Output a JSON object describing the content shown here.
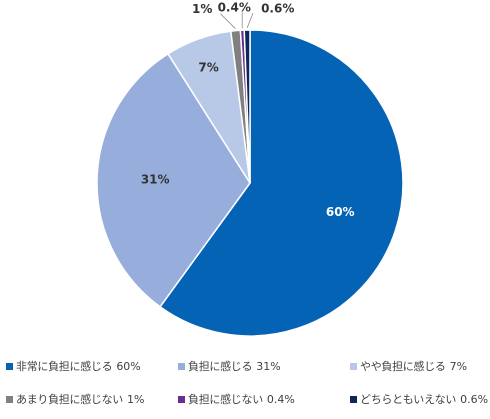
{
  "chart_data": {
    "type": "pie",
    "start_angle_deg": 0,
    "direction": "clockwise",
    "series": [
      {
        "label": "非常に負担に感じる",
        "value": 60,
        "display": "60%",
        "color": "#0563B5",
        "label_color": "#ffffff"
      },
      {
        "label": "負担に感じる",
        "value": 31,
        "display": "31%",
        "color": "#97AEDC",
        "label_color": "#333333"
      },
      {
        "label": "やや負担に感じる",
        "value": 7,
        "display": "7%",
        "color": "#B8C9E8",
        "label_color": "#333333"
      },
      {
        "label": "あまり負担に感じない",
        "value": 1,
        "display": "1%",
        "color": "#808080",
        "label_color": "#333333"
      },
      {
        "label": "負担に感じない",
        "value": 0.4,
        "display": "0.4%",
        "color": "#6A2C91",
        "label_color": "#333333"
      },
      {
        "label": "どちらともいえない",
        "value": 0.6,
        "display": "0.6%",
        "color": "#0E2759",
        "label_color": "#333333"
      }
    ],
    "legend": {
      "position": "bottom",
      "items": [
        {
          "label": "非常に負担に感じる",
          "value": "60%"
        },
        {
          "label": "負担に感じる",
          "value": "31%"
        },
        {
          "label": "やや負担に感じる",
          "value": "7%"
        },
        {
          "label": "あまり負担に感じない",
          "value": "1%"
        },
        {
          "label": "負担に感じない",
          "value": "0.4%"
        },
        {
          "label": "どちらともいえない",
          "value": "0.6%"
        }
      ]
    }
  }
}
